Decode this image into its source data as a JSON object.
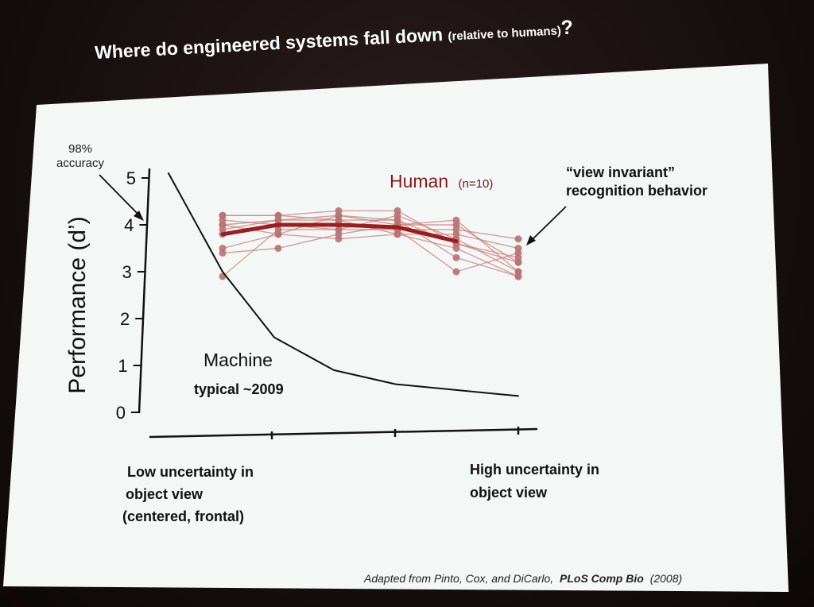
{
  "slide": {
    "title_main": "Where do engineered systems fall down",
    "title_paren": "(relative to humans)",
    "title_q": "?",
    "citation_prefix": "Adapted from Pinto, Cox, and DiCarlo,",
    "citation_journal": "PLoS Comp Bio",
    "citation_year": "(2008)"
  },
  "annotations": {
    "accuracy_line1": "98%",
    "accuracy_line2": "accuracy",
    "human_label": "Human",
    "human_n": "(n=10)",
    "invariant_line1": "“view invariant”",
    "invariant_line2": "recognition behavior",
    "machine_line1": "Machine",
    "machine_line2": "typical ~2009",
    "x_low_line1": "Low uncertainty in",
    "x_low_line2": "object view",
    "x_low_line3": "(centered, frontal)",
    "x_high_line1": "High uncertainty in",
    "x_high_line2": "object view"
  },
  "chart_data": {
    "type": "line",
    "title": "",
    "xlabel": "",
    "ylabel": "Performance (d’)",
    "ylim": [
      0,
      5
    ],
    "yticks": [
      0,
      1,
      2,
      3,
      4,
      5
    ],
    "x": [
      1,
      2,
      3,
      4,
      5,
      6
    ],
    "series": [
      {
        "name": "Machine",
        "color": "#111111",
        "x": [
          1,
          2,
          3,
          4,
          5,
          6
        ],
        "values": [
          5.1,
          3.0,
          1.6,
          0.9,
          0.6,
          0.35
        ]
      },
      {
        "name": "Human",
        "color": "#a01c1c",
        "x": [
          2,
          3,
          4,
          5,
          6
        ],
        "values": [
          3.8,
          4.0,
          4.0,
          3.95,
          3.65
        ]
      }
    ],
    "subject_color": "#c98080",
    "subjects": [
      [
        4.2,
        4.2,
        4.3,
        4.3,
        3.6,
        3.2
      ],
      [
        4.0,
        4.1,
        4.2,
        4.0,
        4.1,
        3.0
      ],
      [
        3.9,
        4.1,
        4.1,
        4.1,
        3.3,
        2.9
      ],
      [
        3.5,
        3.8,
        3.7,
        3.8,
        3.8,
        3.5
      ],
      [
        4.1,
        4.0,
        4.0,
        3.9,
        3.0,
        3.4
      ],
      [
        3.4,
        3.5,
        3.8,
        4.0,
        4.0,
        3.2
      ],
      [
        2.9,
        3.9,
        3.9,
        3.9,
        3.9,
        3.7
      ],
      [
        4.2,
        4.2,
        4.1,
        3.8,
        3.5,
        2.9
      ],
      [
        4.0,
        3.8,
        4.2,
        4.1,
        3.6,
        3.3
      ],
      [
        3.8,
        4.0,
        3.9,
        4.2,
        3.7,
        3.0
      ]
    ],
    "subject_x": [
      1,
      2,
      3,
      4,
      5,
      6
    ]
  }
}
